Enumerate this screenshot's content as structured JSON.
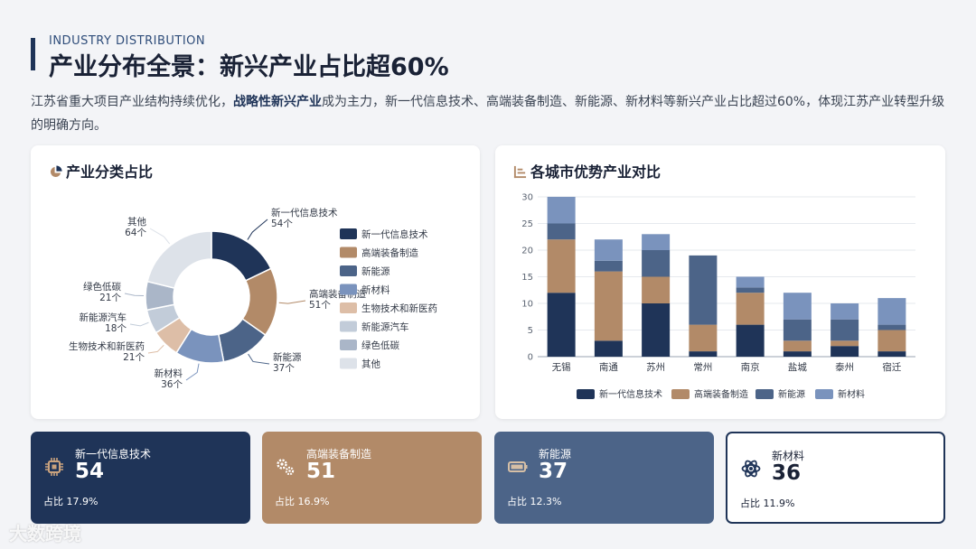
{
  "header": {
    "subtitle_en": "INDUSTRY DISTRIBUTION",
    "title": "产业分布全景：新兴产业占比超60%",
    "intro_prefix": "江苏省重大项目产业结构持续优化，",
    "intro_bold": "战略性新兴产业",
    "intro_suffix": "成为主力，新一代信息技术、高端装备制造、新能源、新材料等新兴产业占比超过60%，体现江苏产业转型升级的明确方向。"
  },
  "pie_card": {
    "title": "产业分类占比"
  },
  "bar_card": {
    "title": "各城市优势产业对比"
  },
  "colors": {
    "新一代信息技术": "#1f3458",
    "高端装备制造": "#b28a68",
    "新能源": "#4c6488",
    "新材料": "#7a93bd",
    "生物技术和新医药": "#ddbea7",
    "新能源汽车": "#c2ccd9",
    "绿色低碳": "#aab6c8",
    "其他": "#dde2e9"
  },
  "chart_data": [
    {
      "type": "pie",
      "donut": true,
      "unit": "个",
      "categories": [
        "新一代信息技术",
        "高端装备制造",
        "新能源",
        "新材料",
        "生物技术和新医药",
        "新能源汽车",
        "绿色低碳",
        "其他"
      ],
      "values": [
        54,
        51,
        37,
        36,
        21,
        18,
        21,
        64
      ],
      "legend": "right"
    },
    {
      "type": "bar",
      "stacked": true,
      "categories": [
        "无锡",
        "南通",
        "苏州",
        "常州",
        "南京",
        "盐城",
        "泰州",
        "宿迁"
      ],
      "series": [
        {
          "name": "新一代信息技术",
          "values": [
            12,
            3,
            10,
            1,
            6,
            1,
            2,
            1
          ]
        },
        {
          "name": "高端装备制造",
          "values": [
            10,
            13,
            5,
            5,
            6,
            2,
            1,
            4
          ]
        },
        {
          "name": "新能源",
          "values": [
            3,
            2,
            5,
            13,
            1,
            4,
            4,
            1
          ]
        },
        {
          "name": "新材料",
          "values": [
            5,
            4,
            3,
            0,
            2,
            5,
            3,
            5
          ]
        }
      ],
      "ylim": [
        0,
        30
      ],
      "yticks": [
        0,
        5,
        10,
        15,
        20,
        25,
        30
      ],
      "grid": true,
      "legend": "bottom"
    }
  ],
  "stats": [
    {
      "label": "新一代信息技术",
      "value": "54",
      "share": "占比 17.9%",
      "icon": "chip-icon"
    },
    {
      "label": "高端装备制造",
      "value": "51",
      "share": "占比 16.9%",
      "icon": "gears-icon"
    },
    {
      "label": "新能源",
      "value": "37",
      "share": "占比 12.3%",
      "icon": "battery-icon"
    },
    {
      "label": "新材料",
      "value": "36",
      "share": "占比 11.9%",
      "icon": "atom-icon"
    }
  ],
  "watermark": "大数跨境"
}
